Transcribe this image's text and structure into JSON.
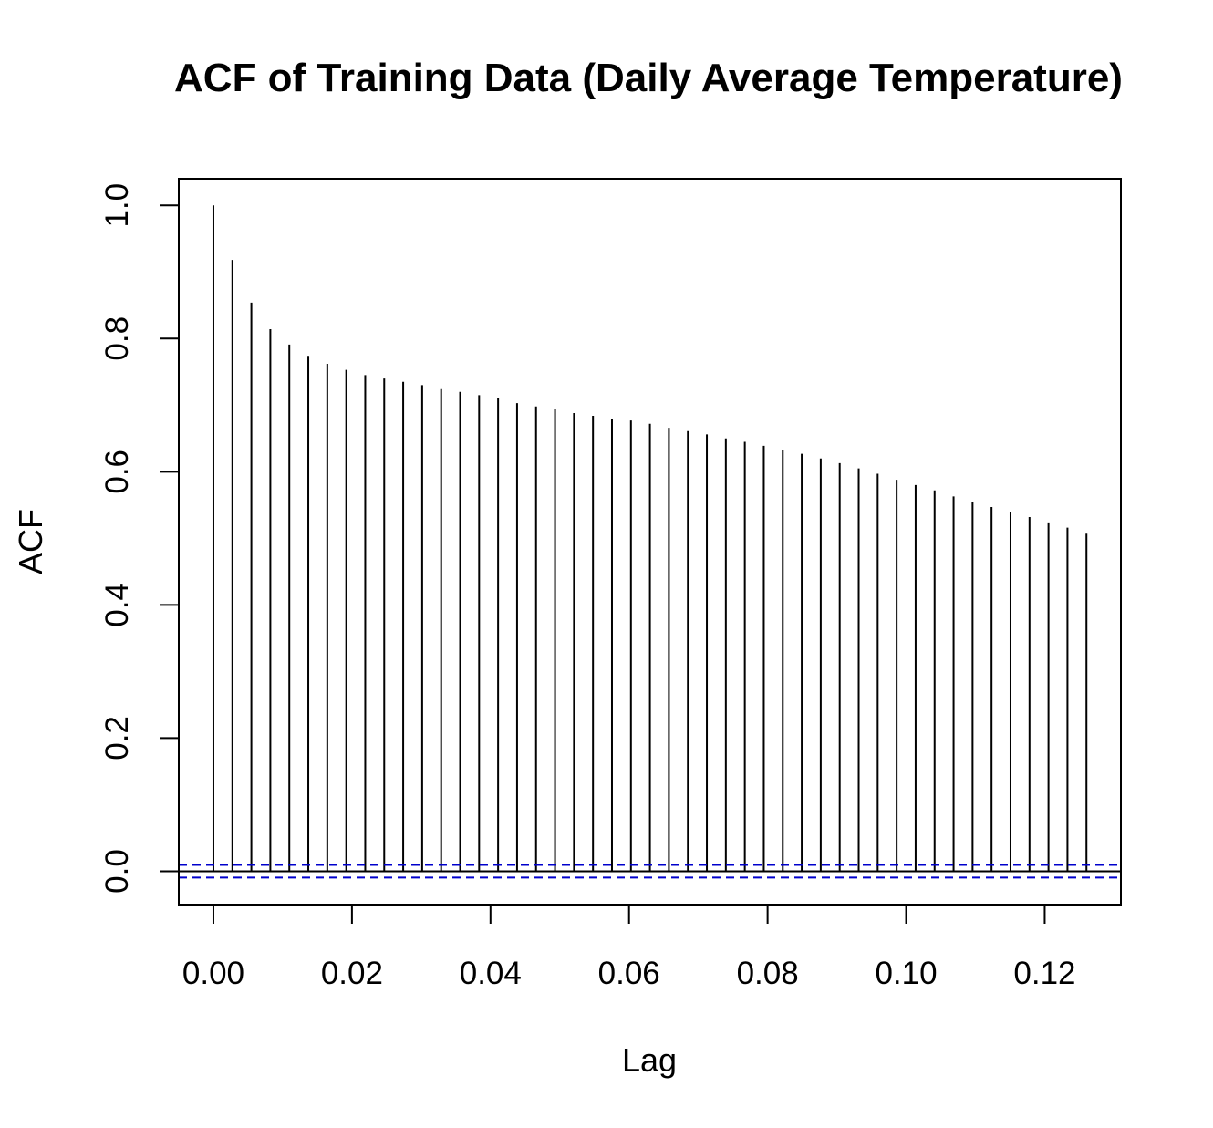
{
  "chart_data": {
    "type": "bar",
    "title": "ACF of Training Data (Daily Average Temperature)",
    "xlabel": "Lag",
    "ylabel": "ACF",
    "xlim": [
      -0.005,
      0.131
    ],
    "ylim": [
      -0.05,
      1.04
    ],
    "x_ticks": [
      "0.00",
      "0.02",
      "0.04",
      "0.06",
      "0.08",
      "0.10",
      "0.12"
    ],
    "x_tick_values": [
      0.0,
      0.02,
      0.04,
      0.06,
      0.08,
      0.1,
      0.12
    ],
    "y_ticks": [
      "0.0",
      "0.2",
      "0.4",
      "0.6",
      "0.8",
      "1.0"
    ],
    "y_tick_values": [
      0.0,
      0.2,
      0.4,
      0.6,
      0.8,
      1.0
    ],
    "lag_step": 0.002739726,
    "acf": [
      1.0,
      0.918,
      0.854,
      0.814,
      0.791,
      0.774,
      0.762,
      0.753,
      0.745,
      0.74,
      0.735,
      0.73,
      0.724,
      0.72,
      0.715,
      0.71,
      0.703,
      0.698,
      0.694,
      0.688,
      0.684,
      0.679,
      0.677,
      0.672,
      0.666,
      0.661,
      0.656,
      0.65,
      0.645,
      0.639,
      0.633,
      0.627,
      0.62,
      0.613,
      0.605,
      0.597,
      0.588,
      0.58,
      0.572,
      0.563,
      0.555,
      0.547,
      0.54,
      0.532,
      0.524,
      0.516,
      0.507
    ],
    "confidence_bound": 0.0095,
    "confidence_color": "#0000cc",
    "bar_color": "#000000",
    "grid": false
  }
}
